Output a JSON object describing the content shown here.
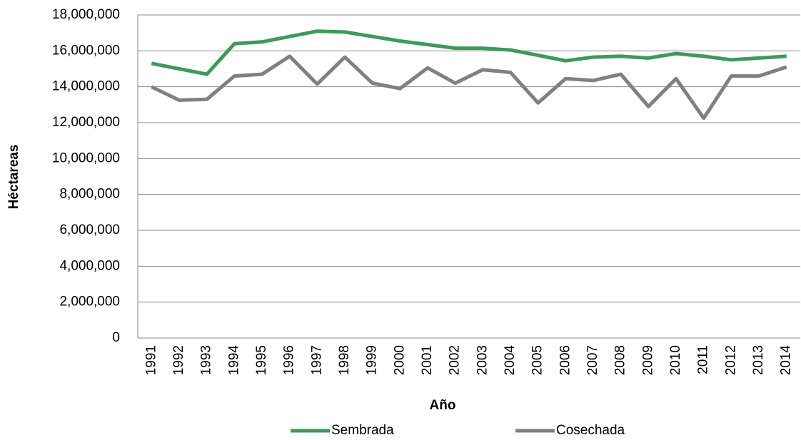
{
  "chart_data": {
    "type": "line",
    "x_label": "Año",
    "y_label": "Héctareas",
    "categories": [
      "1991",
      "1992",
      "1993",
      "1994",
      "1995",
      "1996",
      "1997",
      "1998",
      "1999",
      "2000",
      "2001",
      "2002",
      "2003",
      "2004",
      "2005",
      "2006",
      "2007",
      "2008",
      "2009",
      "2010",
      "2011",
      "2012",
      "2013",
      "2014"
    ],
    "series": [
      {
        "name": "Sembrada",
        "color": "#3d9a5a",
        "values": [
          15300000,
          15000000,
          14700000,
          16400000,
          16500000,
          16800000,
          17100000,
          17050000,
          16800000,
          16550000,
          16350000,
          16150000,
          16150000,
          16050000,
          15750000,
          15450000,
          15650000,
          15700000,
          15600000,
          15850000,
          15700000,
          15500000,
          15600000,
          15700000
        ]
      },
      {
        "name": "Cosechada",
        "color": "#808080",
        "values": [
          14000000,
          13250000,
          13300000,
          14600000,
          14700000,
          15700000,
          14150000,
          15650000,
          14200000,
          13900000,
          15050000,
          14200000,
          14950000,
          14800000,
          13100000,
          14450000,
          14350000,
          14700000,
          12900000,
          14450000,
          12250000,
          14600000,
          14600000,
          15100000
        ]
      }
    ],
    "ylim": [
      0,
      18000000
    ],
    "yticks": [
      0,
      {
        "value": 2000000,
        "label": "2,000,000"
      },
      {
        "value": 4000000,
        "label": "4,000,000"
      },
      {
        "value": 6000000,
        "label": "6,000,000"
      },
      {
        "value": 8000000,
        "label": "8,000,000"
      },
      {
        "value": 10000000,
        "label": "10,000,000"
      },
      {
        "value": 12000000,
        "label": "12,000,000"
      },
      {
        "value": 14000000,
        "label": "14,000,000"
      },
      {
        "value": 16000000,
        "label": "16,000,000"
      },
      {
        "value": 18000000,
        "label": "18,000,000"
      }
    ],
    "grid": true,
    "legend": "bottom"
  }
}
